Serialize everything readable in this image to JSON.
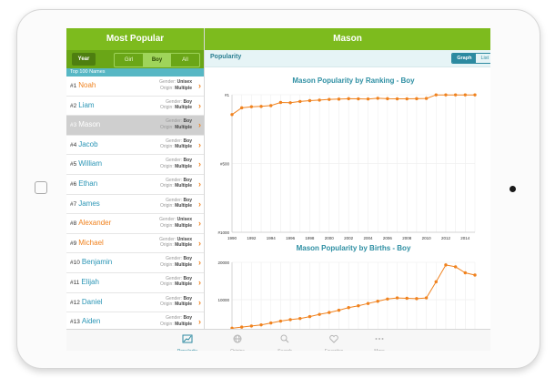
{
  "left": {
    "title": "Most Popular",
    "year_button": "Year",
    "gender_tabs": [
      "Girl",
      "Boy",
      "All"
    ],
    "list_header": "Top 100 Names",
    "gender_label": "Gender:",
    "origin_label": "Origin:",
    "names": [
      {
        "rank": "#1",
        "name": "Noah",
        "gender": "Unisex",
        "origin": "Multiple",
        "color": "#f0821e"
      },
      {
        "rank": "#2",
        "name": "Liam",
        "gender": "Boy",
        "origin": "Multiple",
        "color": "#2a95b5"
      },
      {
        "rank": "#3",
        "name": "Mason",
        "gender": "Boy",
        "origin": "Multiple",
        "color": "#ffffff"
      },
      {
        "rank": "#4",
        "name": "Jacob",
        "gender": "Boy",
        "origin": "Multiple",
        "color": "#2a95b5"
      },
      {
        "rank": "#5",
        "name": "William",
        "gender": "Boy",
        "origin": "Multiple",
        "color": "#2a95b5"
      },
      {
        "rank": "#6",
        "name": "Ethan",
        "gender": "Boy",
        "origin": "Multiple",
        "color": "#2a95b5"
      },
      {
        "rank": "#7",
        "name": "James",
        "gender": "Boy",
        "origin": "Multiple",
        "color": "#2a95b5"
      },
      {
        "rank": "#8",
        "name": "Alexander",
        "gender": "Unisex",
        "origin": "Multiple",
        "color": "#f0821e"
      },
      {
        "rank": "#9",
        "name": "Michael",
        "gender": "Unisex",
        "origin": "Multiple",
        "color": "#f0821e"
      },
      {
        "rank": "#10",
        "name": "Benjamin",
        "gender": "Boy",
        "origin": "Multiple",
        "color": "#2a95b5"
      },
      {
        "rank": "#11",
        "name": "Elijah",
        "gender": "Boy",
        "origin": "Multiple",
        "color": "#2a95b5"
      },
      {
        "rank": "#12",
        "name": "Daniel",
        "gender": "Boy",
        "origin": "Multiple",
        "color": "#2a95b5"
      },
      {
        "rank": "#13",
        "name": "Aiden",
        "gender": "Boy",
        "origin": "Multiple",
        "color": "#2a95b5"
      }
    ]
  },
  "right": {
    "title": "Mason",
    "popularity_label": "Popularity",
    "toggle": [
      "Graph",
      "List"
    ]
  },
  "chart_data": [
    {
      "type": "line",
      "title": "Mason Popularity by Ranking - Boy",
      "x": [
        1990,
        1991,
        1992,
        1993,
        1994,
        1995,
        1996,
        1997,
        1998,
        1999,
        2000,
        2001,
        2002,
        2003,
        2004,
        2005,
        2006,
        2007,
        2008,
        2009,
        2010,
        2011,
        2012,
        2013,
        2014,
        2015
      ],
      "y": [
        145,
        96,
        88,
        86,
        80,
        57,
        59,
        50,
        44,
        40,
        35,
        33,
        30,
        31,
        32,
        27,
        30,
        31,
        31,
        30,
        28,
        2,
        2,
        2,
        2,
        2
      ],
      "y_ticks": [
        "#1",
        "#500",
        "#1000"
      ],
      "y_tick_values": [
        1,
        500,
        1000
      ],
      "ylim": [
        1,
        1000
      ],
      "y_reversed": true,
      "x_ticks": [
        1990,
        1992,
        1994,
        1996,
        1998,
        2000,
        2002,
        2004,
        2006,
        2008,
        2010,
        2012,
        2014
      ],
      "grid": true,
      "color": "#f0821e"
    },
    {
      "type": "line",
      "title": "Mason Popularity by Births - Boy",
      "x": [
        1990,
        1991,
        1992,
        1993,
        1994,
        1995,
        1996,
        1997,
        1998,
        1999,
        2000,
        2001,
        2002,
        2003,
        2004,
        2005,
        2006,
        2007,
        2008,
        2009,
        2010,
        2011,
        2012,
        2013,
        2014,
        2015
      ],
      "y": [
        2400,
        2700,
        3000,
        3300,
        3800,
        4300,
        4700,
        5000,
        5500,
        6100,
        6600,
        7200,
        7900,
        8400,
        9000,
        9600,
        10200,
        10500,
        10400,
        10300,
        10500,
        14800,
        19300,
        18800,
        17200,
        16600
      ],
      "y_ticks": [
        "20000",
        "10000"
      ],
      "y_tick_values": [
        20000,
        10000
      ],
      "ylim": [
        2000,
        20000
      ],
      "grid": true,
      "color": "#f0821e"
    }
  ],
  "tabs": [
    {
      "label": "Popularity",
      "icon": "trend-icon",
      "active": true
    },
    {
      "label": "Origins",
      "icon": "globe-icon",
      "active": false
    },
    {
      "label": "Search",
      "icon": "search-icon",
      "active": false
    },
    {
      "label": "Favorites",
      "icon": "heart-icon",
      "active": false
    },
    {
      "label": "More",
      "icon": "more-icon",
      "active": false
    }
  ],
  "colors": {
    "green": "#7dbb1e",
    "orange": "#f0821e",
    "teal": "#2c8aa0"
  }
}
